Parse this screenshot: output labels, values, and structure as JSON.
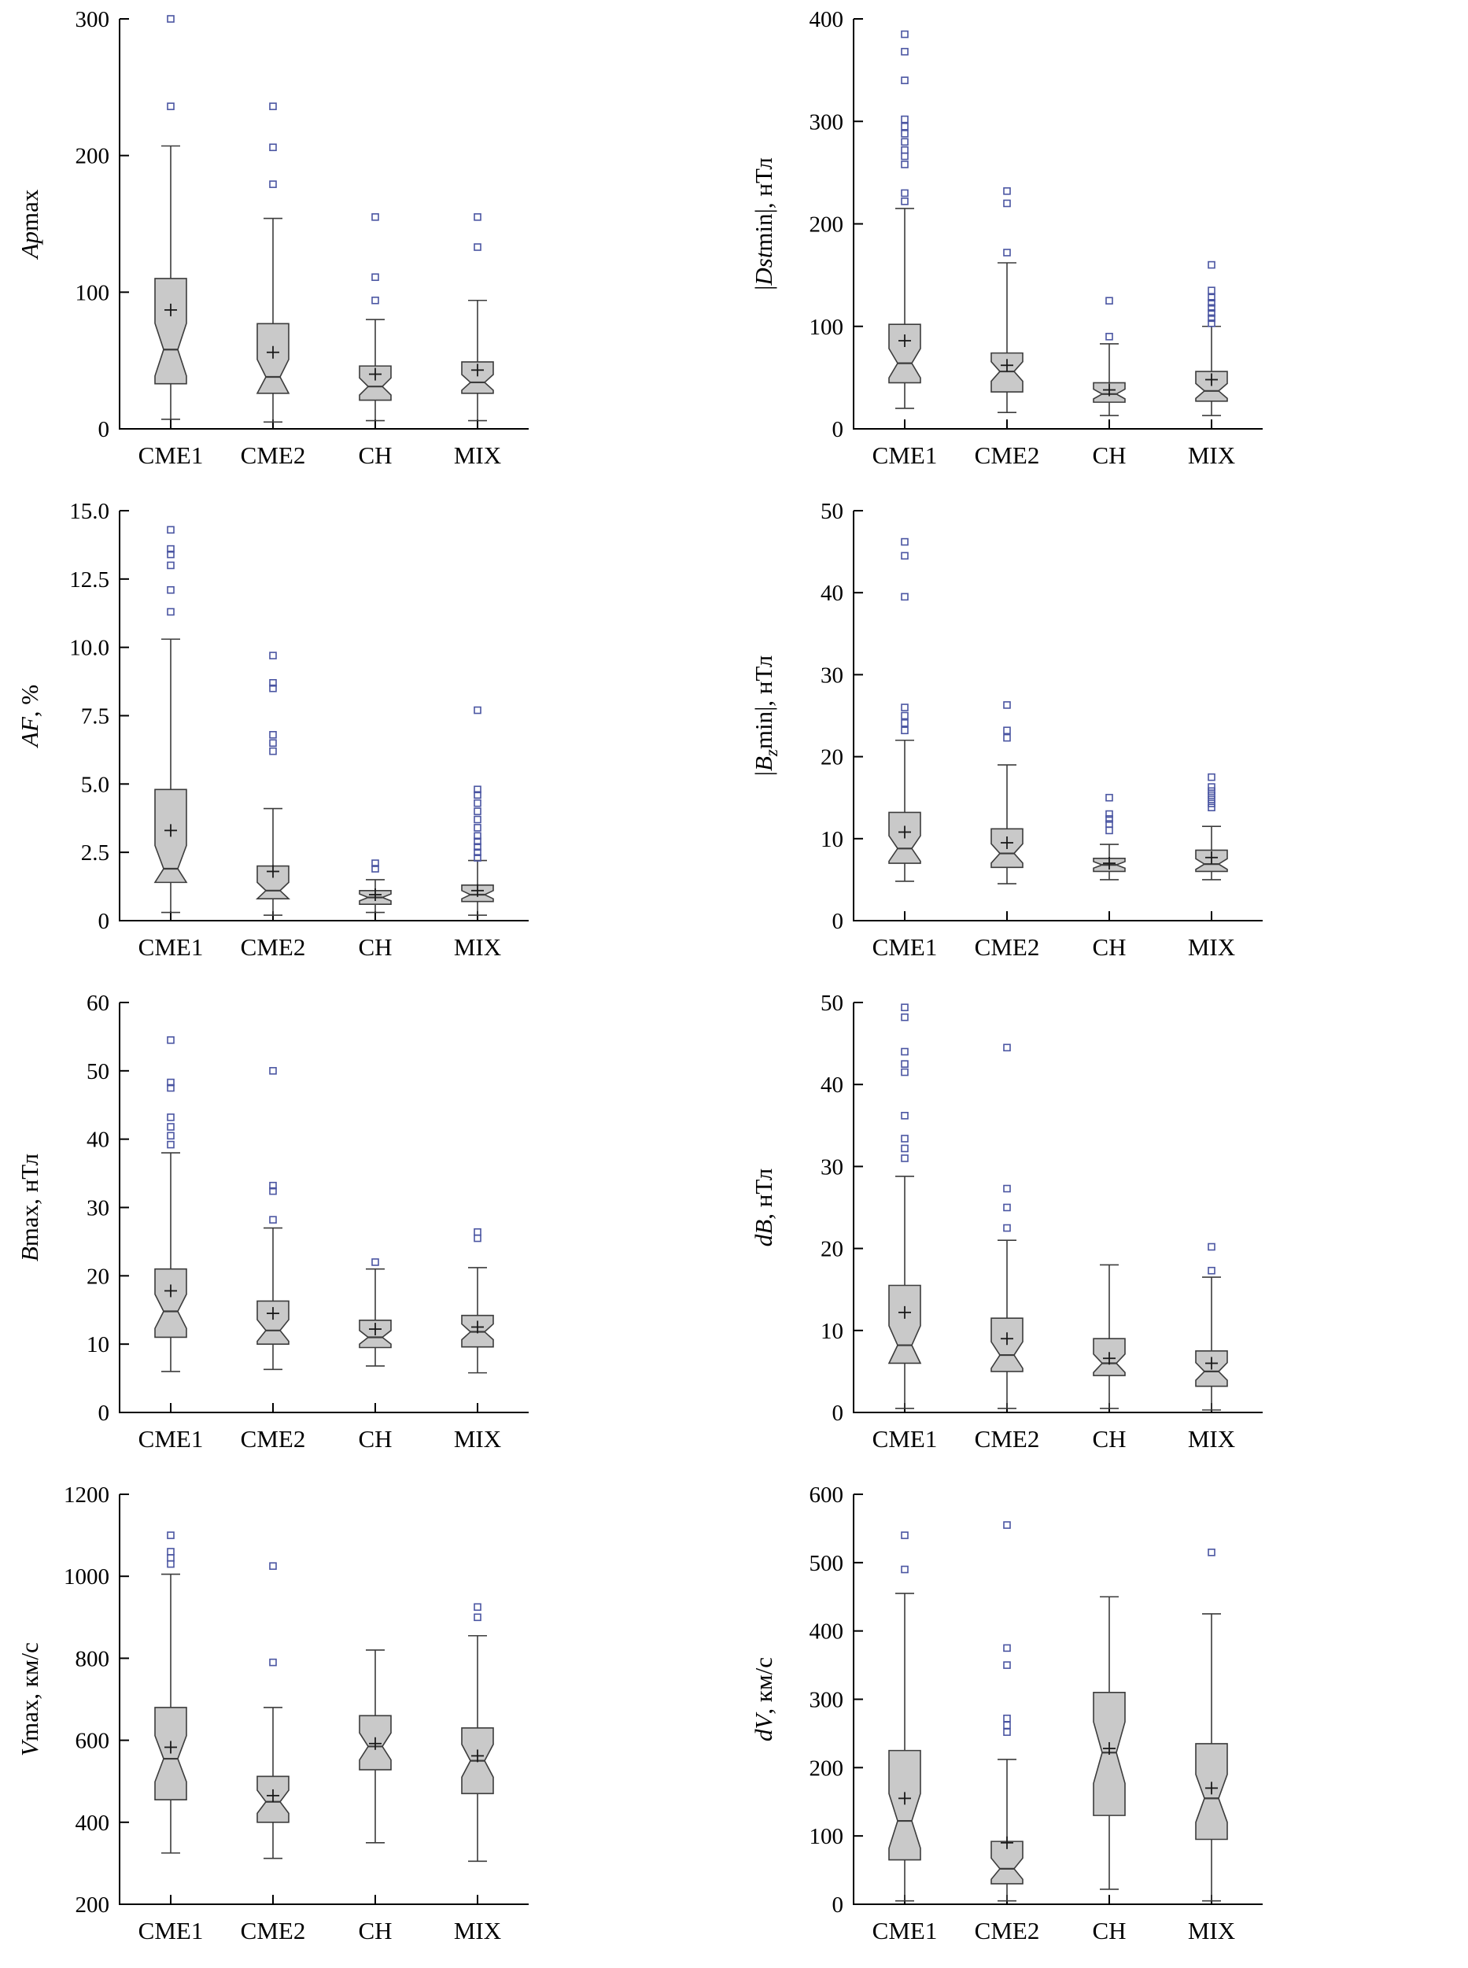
{
  "page": {
    "background": "#ffffff"
  },
  "style": {
    "box_fill": "#c9c9c9",
    "box_stroke": "#3c3c3c",
    "whisker_color": "#3c3c3c",
    "outlier_color": "#4a55a2",
    "mean_color": "#1a1a1a",
    "axis_color": "#000000"
  },
  "chart_data": [
    {
      "type": "boxplot",
      "ylabel": "Apmax",
      "ylabel_parts": [
        {
          "t": "Ap",
          "i": true
        },
        {
          "t": "max",
          "i": false
        }
      ],
      "categories": [
        "CME1",
        "CME2",
        "CH",
        "MIX"
      ],
      "ylim": [
        0,
        300
      ],
      "yticks": [
        {
          "v": 0,
          "label": "0"
        },
        {
          "v": 100,
          "label": "100"
        },
        {
          "v": 200,
          "label": "200"
        },
        {
          "v": 300,
          "label": "300"
        }
      ],
      "series": [
        {
          "category": "CME1",
          "whisker_low": 7,
          "q1": 33,
          "median": 58,
          "q3": 110,
          "whisker_high": 207,
          "mean": 87,
          "outliers": [
            236,
            300
          ]
        },
        {
          "category": "CME2",
          "whisker_low": 5,
          "q1": 26,
          "median": 38,
          "q3": 77,
          "whisker_high": 154,
          "mean": 56,
          "outliers": [
            179,
            206,
            236
          ]
        },
        {
          "category": "CH",
          "whisker_low": 6,
          "q1": 21,
          "median": 31,
          "q3": 46,
          "whisker_high": 80,
          "mean": 40,
          "outliers": [
            94,
            111,
            155
          ]
        },
        {
          "category": "MIX",
          "whisker_low": 6,
          "q1": 26,
          "median": 34,
          "q3": 49,
          "whisker_high": 94,
          "mean": 43,
          "outliers": [
            133,
            155
          ]
        }
      ]
    },
    {
      "type": "boxplot",
      "ylabel": "|Dstmin|, нТл",
      "ylabel_parts": [
        {
          "t": "|",
          "i": false
        },
        {
          "t": "Dst",
          "i": true
        },
        {
          "t": "min",
          "i": false
        },
        {
          "t": "|, нТл",
          "i": false
        }
      ],
      "categories": [
        "CME1",
        "CME2",
        "CH",
        "MIX"
      ],
      "ylim": [
        0,
        400
      ],
      "yticks": [
        {
          "v": 0,
          "label": "0"
        },
        {
          "v": 100,
          "label": "100"
        },
        {
          "v": 200,
          "label": "200"
        },
        {
          "v": 300,
          "label": "300"
        },
        {
          "v": 400,
          "label": "400"
        }
      ],
      "series": [
        {
          "category": "CME1",
          "whisker_low": 20,
          "q1": 45,
          "median": 64,
          "q3": 102,
          "whisker_high": 215,
          "mean": 86,
          "outliers": [
            222,
            230,
            258,
            266,
            272,
            280,
            288,
            295,
            302,
            340,
            368,
            385
          ]
        },
        {
          "category": "CME2",
          "whisker_low": 16,
          "q1": 36,
          "median": 56,
          "q3": 74,
          "whisker_high": 162,
          "mean": 62,
          "outliers": [
            172,
            220,
            232
          ]
        },
        {
          "category": "CH",
          "whisker_low": 13,
          "q1": 26,
          "median": 34,
          "q3": 45,
          "whisker_high": 83,
          "mean": 38,
          "outliers": [
            90,
            125
          ]
        },
        {
          "category": "MIX",
          "whisker_low": 13,
          "q1": 27,
          "median": 37,
          "q3": 56,
          "whisker_high": 100,
          "mean": 48,
          "outliers": [
            103,
            108,
            113,
            118,
            123,
            128,
            135,
            160
          ]
        }
      ]
    },
    {
      "type": "boxplot",
      "ylabel": "AF, %",
      "ylabel_parts": [
        {
          "t": "AF",
          "i": true
        },
        {
          "t": ", %",
          "i": false
        }
      ],
      "categories": [
        "CME1",
        "CME2",
        "CH",
        "MIX"
      ],
      "ylim": [
        0,
        15
      ],
      "yticks": [
        {
          "v": 0,
          "label": "0"
        },
        {
          "v": 2.5,
          "label": "2.5"
        },
        {
          "v": 5,
          "label": "5.0"
        },
        {
          "v": 7.5,
          "label": "7.5"
        },
        {
          "v": 10,
          "label": "10.0"
        },
        {
          "v": 12.5,
          "label": "12.5"
        },
        {
          "v": 15,
          "label": "15.0"
        }
      ],
      "series": [
        {
          "category": "CME1",
          "whisker_low": 0.3,
          "q1": 1.4,
          "median": 1.9,
          "q3": 4.8,
          "whisker_high": 10.3,
          "mean": 3.3,
          "outliers": [
            11.3,
            12.1,
            13.0,
            13.4,
            13.6,
            14.3
          ]
        },
        {
          "category": "CME2",
          "whisker_low": 0.2,
          "q1": 0.8,
          "median": 1.1,
          "q3": 2.0,
          "whisker_high": 4.1,
          "mean": 1.8,
          "outliers": [
            6.2,
            6.5,
            6.8,
            8.5,
            8.7,
            9.7
          ]
        },
        {
          "category": "CH",
          "whisker_low": 0.3,
          "q1": 0.6,
          "median": 0.85,
          "q3": 1.1,
          "whisker_high": 1.5,
          "mean": 0.95,
          "outliers": [
            1.9,
            2.1
          ]
        },
        {
          "category": "MIX",
          "whisker_low": 0.2,
          "q1": 0.7,
          "median": 0.95,
          "q3": 1.3,
          "whisker_high": 2.2,
          "mean": 1.1,
          "outliers": [
            2.3,
            2.5,
            2.7,
            2.9,
            3.1,
            3.4,
            3.7,
            4.0,
            4.3,
            4.6,
            4.8,
            7.7
          ]
        }
      ]
    },
    {
      "type": "boxplot",
      "ylabel": "|Bzmin|, нТл",
      "ylabel_parts": [
        {
          "t": "|",
          "i": false
        },
        {
          "t": "B",
          "i": true
        },
        {
          "t": "z",
          "i": true,
          "sub": true
        },
        {
          "t": "min",
          "i": false
        },
        {
          "t": "|, нТл",
          "i": false
        }
      ],
      "categories": [
        "CME1",
        "CME2",
        "CH",
        "MIX"
      ],
      "ylim": [
        0,
        50
      ],
      "yticks": [
        {
          "v": 0,
          "label": "0"
        },
        {
          "v": 10,
          "label": "10"
        },
        {
          "v": 20,
          "label": "20"
        },
        {
          "v": 30,
          "label": "30"
        },
        {
          "v": 40,
          "label": "40"
        },
        {
          "v": 50,
          "label": "50"
        }
      ],
      "series": [
        {
          "category": "CME1",
          "whisker_low": 4.8,
          "q1": 7,
          "median": 8.8,
          "q3": 13.2,
          "whisker_high": 22,
          "mean": 10.8,
          "outliers": [
            23.2,
            24.1,
            25,
            26,
            39.5,
            44.5,
            46.2
          ]
        },
        {
          "category": "CME2",
          "whisker_low": 4.5,
          "q1": 6.5,
          "median": 8.2,
          "q3": 11.2,
          "whisker_high": 19,
          "mean": 9.5,
          "outliers": [
            22.3,
            23.2,
            26.3
          ]
        },
        {
          "category": "CH",
          "whisker_low": 5,
          "q1": 6,
          "median": 6.8,
          "q3": 7.6,
          "whisker_high": 9.3,
          "mean": 7,
          "outliers": [
            11,
            11.8,
            12.4,
            13,
            15
          ]
        },
        {
          "category": "MIX",
          "whisker_low": 5,
          "q1": 6,
          "median": 6.9,
          "q3": 8.6,
          "whisker_high": 11.5,
          "mean": 7.7,
          "outliers": [
            13.8,
            14.3,
            14.8,
            15.3,
            15.8,
            16.3,
            17.5
          ]
        }
      ]
    },
    {
      "type": "boxplot",
      "ylabel": "Bmax, нТл",
      "ylabel_parts": [
        {
          "t": "B",
          "i": true
        },
        {
          "t": "max, нТл",
          "i": false
        }
      ],
      "categories": [
        "CME1",
        "CME2",
        "CH",
        "MIX"
      ],
      "ylim": [
        0,
        60
      ],
      "yticks": [
        {
          "v": 0,
          "label": "0"
        },
        {
          "v": 10,
          "label": "10"
        },
        {
          "v": 20,
          "label": "20"
        },
        {
          "v": 30,
          "label": "30"
        },
        {
          "v": 40,
          "label": "40"
        },
        {
          "v": 50,
          "label": "50"
        },
        {
          "v": 60,
          "label": "60"
        }
      ],
      "series": [
        {
          "category": "CME1",
          "whisker_low": 6,
          "q1": 11,
          "median": 14.8,
          "q3": 21,
          "whisker_high": 38,
          "mean": 17.8,
          "outliers": [
            39.2,
            40.5,
            41.8,
            43.2,
            47.5,
            48.3,
            54.5
          ]
        },
        {
          "category": "CME2",
          "whisker_low": 6.3,
          "q1": 10,
          "median": 12,
          "q3": 16.3,
          "whisker_high": 27,
          "mean": 14.5,
          "outliers": [
            28.2,
            32.4,
            33.2,
            50
          ]
        },
        {
          "category": "CH",
          "whisker_low": 6.8,
          "q1": 9.5,
          "median": 11,
          "q3": 13.5,
          "whisker_high": 21,
          "mean": 12.2,
          "outliers": [
            22
          ]
        },
        {
          "category": "MIX",
          "whisker_low": 5.8,
          "q1": 9.6,
          "median": 11.8,
          "q3": 14.2,
          "whisker_high": 21.2,
          "mean": 12.5,
          "outliers": [
            25.5,
            26.4
          ]
        }
      ]
    },
    {
      "type": "boxplot",
      "ylabel": "dB, нТл",
      "ylabel_parts": [
        {
          "t": "dB",
          "i": true
        },
        {
          "t": ", нТл",
          "i": false
        }
      ],
      "categories": [
        "CME1",
        "CME2",
        "CH",
        "MIX"
      ],
      "ylim": [
        0,
        50
      ],
      "yticks": [
        {
          "v": 0,
          "label": "0"
        },
        {
          "v": 10,
          "label": "10"
        },
        {
          "v": 20,
          "label": "20"
        },
        {
          "v": 30,
          "label": "30"
        },
        {
          "v": 40,
          "label": "40"
        },
        {
          "v": 50,
          "label": "50"
        }
      ],
      "series": [
        {
          "category": "CME1",
          "whisker_low": 0.5,
          "q1": 6,
          "median": 8.2,
          "q3": 15.5,
          "whisker_high": 28.8,
          "mean": 12.2,
          "outliers": [
            31,
            32.2,
            33.4,
            36.2,
            41.5,
            42.5,
            44,
            48.2,
            49.4
          ]
        },
        {
          "category": "CME2",
          "whisker_low": 0.5,
          "q1": 5,
          "median": 7,
          "q3": 11.5,
          "whisker_high": 21,
          "mean": 9,
          "outliers": [
            22.5,
            25,
            27.3,
            44.5
          ]
        },
        {
          "category": "CH",
          "whisker_low": 0.5,
          "q1": 4.5,
          "median": 6,
          "q3": 9,
          "whisker_high": 18,
          "mean": 6.6,
          "outliers": []
        },
        {
          "category": "MIX",
          "whisker_low": 0.3,
          "q1": 3.2,
          "median": 5,
          "q3": 7.5,
          "whisker_high": 16.5,
          "mean": 6,
          "outliers": [
            17.3,
            20.2
          ]
        }
      ]
    },
    {
      "type": "boxplot",
      "ylabel": "Vmax, км/с",
      "ylabel_parts": [
        {
          "t": "V",
          "i": true
        },
        {
          "t": "max, км/с",
          "i": false
        }
      ],
      "categories": [
        "CME1",
        "CME2",
        "CH",
        "MIX"
      ],
      "ylim": [
        200,
        1200
      ],
      "yticks": [
        {
          "v": 200,
          "label": "200"
        },
        {
          "v": 400,
          "label": "400"
        },
        {
          "v": 600,
          "label": "600"
        },
        {
          "v": 800,
          "label": "800"
        },
        {
          "v": 1000,
          "label": "1000"
        },
        {
          "v": 1200,
          "label": "1200"
        }
      ],
      "series": [
        {
          "category": "CME1",
          "whisker_low": 325,
          "q1": 455,
          "median": 555,
          "q3": 680,
          "whisker_high": 1005,
          "mean": 583,
          "outliers": [
            1030,
            1045,
            1060,
            1100
          ]
        },
        {
          "category": "CME2",
          "whisker_low": 312,
          "q1": 400,
          "median": 450,
          "q3": 512,
          "whisker_high": 680,
          "mean": 465,
          "outliers": [
            790,
            1025
          ]
        },
        {
          "category": "CH",
          "whisker_low": 350,
          "q1": 528,
          "median": 585,
          "q3": 660,
          "whisker_high": 820,
          "mean": 592,
          "outliers": []
        },
        {
          "category": "MIX",
          "whisker_low": 305,
          "q1": 470,
          "median": 550,
          "q3": 630,
          "whisker_high": 855,
          "mean": 562,
          "outliers": [
            900,
            925
          ]
        }
      ]
    },
    {
      "type": "boxplot",
      "ylabel": "dV, км/с",
      "ylabel_parts": [
        {
          "t": "dV",
          "i": true
        },
        {
          "t": ", км/с",
          "i": false
        }
      ],
      "categories": [
        "CME1",
        "CME2",
        "CH",
        "MIX"
      ],
      "ylim": [
        0,
        600
      ],
      "yticks": [
        {
          "v": 0,
          "label": "0"
        },
        {
          "v": 100,
          "label": "100"
        },
        {
          "v": 200,
          "label": "200"
        },
        {
          "v": 300,
          "label": "300"
        },
        {
          "v": 400,
          "label": "400"
        },
        {
          "v": 500,
          "label": "500"
        },
        {
          "v": 600,
          "label": "600"
        }
      ],
      "series": [
        {
          "category": "CME1",
          "whisker_low": 5,
          "q1": 65,
          "median": 122,
          "q3": 225,
          "whisker_high": 455,
          "mean": 155,
          "outliers": [
            490,
            540
          ]
        },
        {
          "category": "CME2",
          "whisker_low": 5,
          "q1": 30,
          "median": 52,
          "q3": 92,
          "whisker_high": 212,
          "mean": 90,
          "outliers": [
            252,
            262,
            272,
            350,
            375,
            555
          ]
        },
        {
          "category": "CH",
          "whisker_low": 22,
          "q1": 130,
          "median": 222,
          "q3": 310,
          "whisker_high": 450,
          "mean": 228,
          "outliers": []
        },
        {
          "category": "MIX",
          "whisker_low": 5,
          "q1": 95,
          "median": 155,
          "q3": 235,
          "whisker_high": 425,
          "mean": 170,
          "outliers": [
            515
          ]
        }
      ]
    }
  ]
}
